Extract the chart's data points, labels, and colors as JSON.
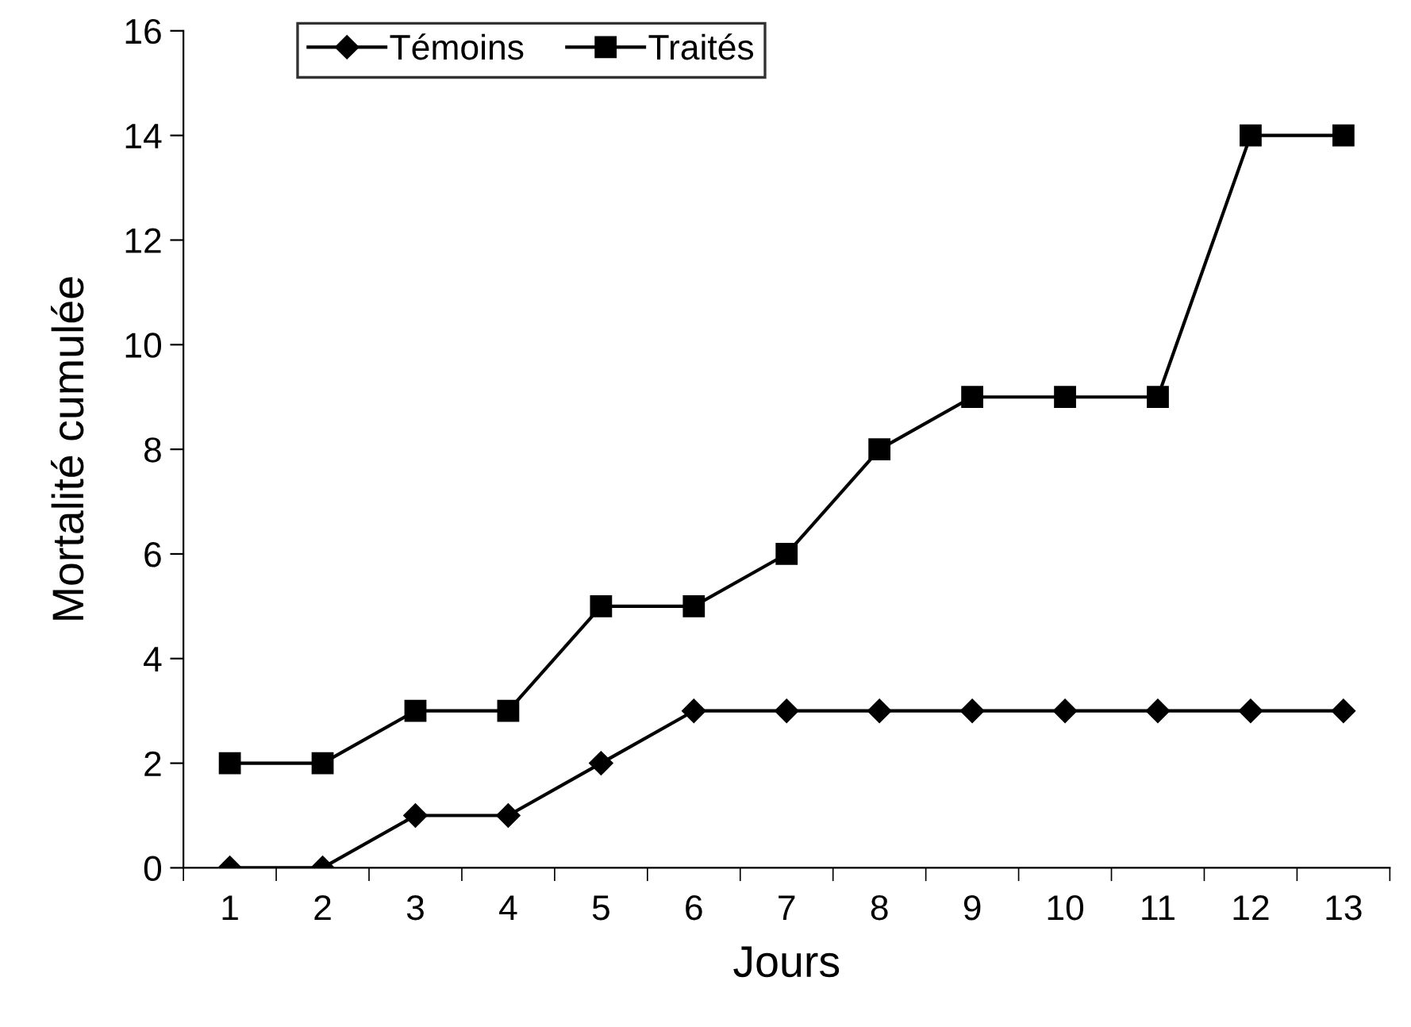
{
  "chart_data": {
    "type": "line",
    "xlabel": "Jours",
    "ylabel": "Mortalité cumulée",
    "categories": [
      "1",
      "2",
      "3",
      "4",
      "5",
      "6",
      "7",
      "8",
      "9",
      "10",
      "11",
      "12",
      "13"
    ],
    "series": [
      {
        "name": "Témoins",
        "color": "#000000",
        "marker": "diamond",
        "values": [
          0,
          0,
          1,
          1,
          2,
          3,
          3,
          3,
          3,
          3,
          3,
          3,
          3
        ]
      },
      {
        "name": "Traités",
        "color": "#000000",
        "marker": "square",
        "values": [
          2,
          2,
          3,
          3,
          5,
          5,
          6,
          8,
          9,
          9,
          9,
          14,
          14
        ]
      }
    ],
    "ylim": [
      0,
      16
    ],
    "yticks": [
      0,
      2,
      4,
      6,
      8,
      10,
      12,
      14,
      16
    ],
    "grid": false,
    "legend": "top left",
    "line_style": "solid"
  }
}
